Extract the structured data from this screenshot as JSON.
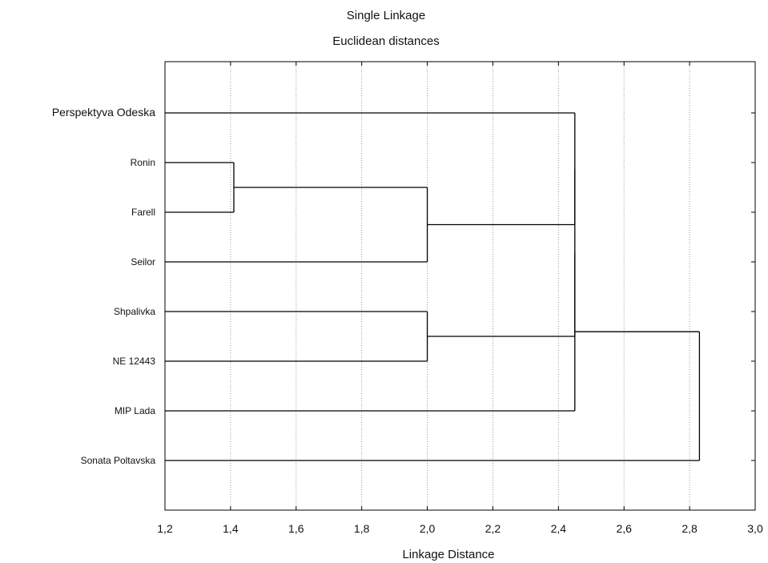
{
  "chart_data": {
    "type": "dendrogram",
    "title": "Single Linkage",
    "subtitle": "Euclidean distances",
    "xlabel": "Linkage Distance",
    "xlim": [
      1.2,
      3.0
    ],
    "xticks": [
      "1,2",
      "1,4",
      "1,6",
      "1,8",
      "2,0",
      "2,2",
      "2,4",
      "2,6",
      "2,8",
      "3,0"
    ],
    "grid": true,
    "leaves": [
      "Perspektyva Odeska",
      "Ronin",
      "Farell",
      "Seilor",
      "Shpalivka",
      "NE 12443",
      "MIP Lada",
      "Sonata Poltavska"
    ],
    "merges": [
      {
        "left": "Ronin",
        "right": "Farell",
        "distance": 1.41
      },
      {
        "left": "Ronin+Farell",
        "right": "Seilor",
        "distance": 2.0
      },
      {
        "left": "Shpalivka",
        "right": "NE 12443",
        "distance": 2.0
      },
      {
        "left": "Perspektyva Odeska",
        "right": "Ronin+Farell+Seilor",
        "distance": 2.45
      },
      {
        "left": "Perspektyva Odeska+Ronin+Farell+Seilor",
        "right": "Shpalivka+NE 12443",
        "distance": 2.45
      },
      {
        "left": "Perspektyva Odeska+Ronin+Farell+Seilor+Shpalivka+NE 12443",
        "right": "MIP Lada",
        "distance": 2.45
      },
      {
        "left": "Perspektyva Odeska+Ronin+Farell+Seilor+Shpalivka+NE 12443+MIP Lada",
        "right": "Sonata Poltavska",
        "distance": 2.83
      }
    ]
  }
}
